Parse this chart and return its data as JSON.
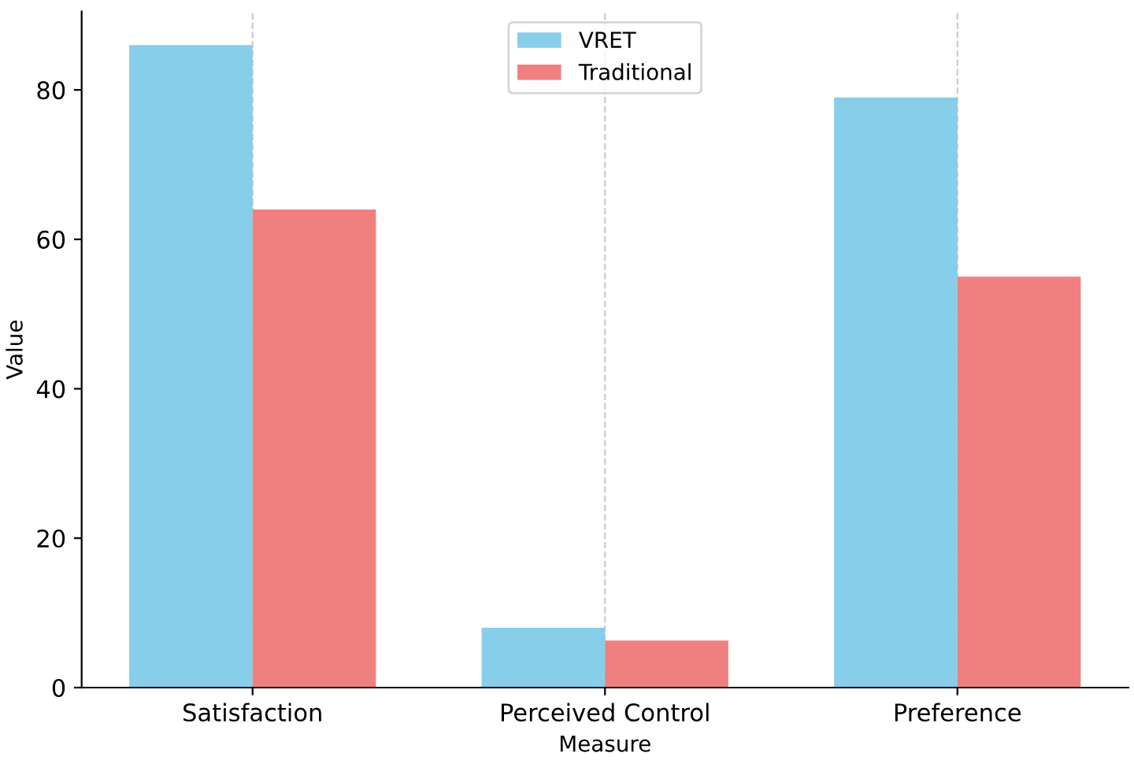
{
  "chart_data": {
    "type": "bar",
    "xlabel": "Measure",
    "ylabel": "Value",
    "categories": [
      "Satisfaction",
      "Perceived Control",
      "Preference"
    ],
    "series": [
      {
        "name": "VRET",
        "color": "#87ceeb",
        "values": [
          86,
          8,
          79
        ]
      },
      {
        "name": "Traditional",
        "color": "#f08080",
        "values": [
          64,
          6.3,
          55
        ]
      }
    ],
    "ylim": [
      0,
      90.5
    ],
    "yticks": [
      0,
      20,
      40,
      60,
      80
    ],
    "grid": "x",
    "legend": "top"
  }
}
